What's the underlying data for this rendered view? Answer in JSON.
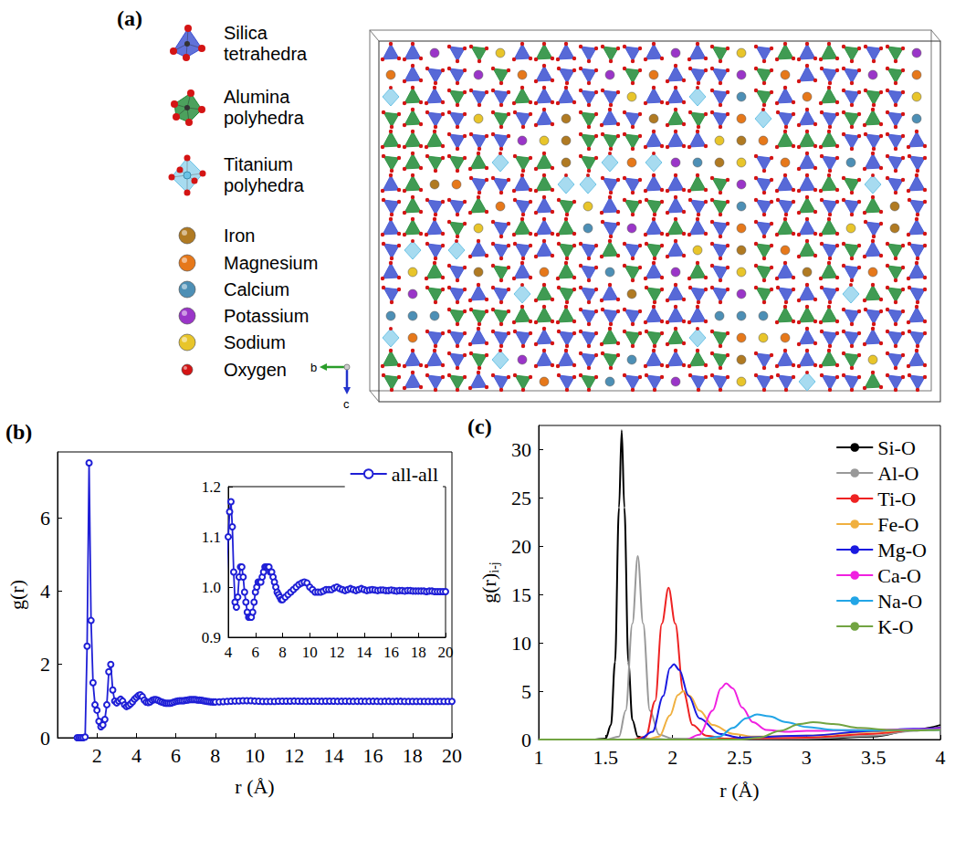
{
  "panel_a": {
    "label": "(a)",
    "legend": [
      {
        "name": "Silica tetrahedra",
        "color": "#3a4fd0",
        "marker": "tetrahedron"
      },
      {
        "name": "Alumina polyhedra",
        "color": "#1f8a35",
        "marker": "polyhedron"
      },
      {
        "name": "Titanium polyhedra",
        "color": "#6cc3e6",
        "marker": "octahedron"
      },
      {
        "name": "Iron",
        "color": "#b07a22",
        "marker": "sphere"
      },
      {
        "name": "Magnesium",
        "color": "#e6781a",
        "marker": "sphere"
      },
      {
        "name": "Calcium",
        "color": "#4d8fb5",
        "marker": "sphere"
      },
      {
        "name": "Potassium",
        "color": "#9a35c8",
        "marker": "sphere"
      },
      {
        "name": "Sodium",
        "color": "#e8c52a",
        "marker": "sphere"
      },
      {
        "name": "Oxygen",
        "color": "#d41414",
        "marker": "sphere"
      }
    ],
    "axes": [
      {
        "name": "b",
        "color": "#2a9d2a"
      },
      {
        "name": "c",
        "color": "#2233cc"
      }
    ]
  },
  "chart_data": [
    {
      "label": "(b)",
      "type": "line",
      "x_label": "r (Å)",
      "y_label": "g(r)",
      "xlim": [
        0,
        20
      ],
      "xticks": [
        2,
        4,
        6,
        8,
        10,
        12,
        14,
        16,
        18,
        20
      ],
      "ylim": [
        0,
        7.8
      ],
      "yticks": [
        0,
        2,
        4,
        6
      ],
      "legend": "upper right",
      "series": [
        {
          "name": "all-all",
          "color": "#1f1fd6",
          "marker": "circle",
          "x": [
            1.0,
            1.1,
            1.2,
            1.3,
            1.4,
            1.5,
            1.6,
            1.7,
            1.8,
            1.9,
            2.0,
            2.1,
            2.2,
            2.3,
            2.4,
            2.5,
            2.6,
            2.7,
            2.8,
            2.9,
            3.0,
            3.1,
            3.2,
            3.3,
            3.4,
            3.5,
            3.6,
            3.7,
            3.8,
            3.9,
            4.0,
            4.1,
            4.2,
            4.3,
            4.4,
            4.5,
            4.6,
            4.7,
            4.8,
            4.9,
            5.0,
            5.1,
            5.2,
            5.3,
            5.4,
            5.5,
            5.6,
            5.7,
            5.8,
            5.9,
            6.0,
            6.1,
            6.2,
            6.3,
            6.4,
            6.5,
            6.6,
            6.7,
            6.8,
            6.9,
            7.0,
            7.1,
            7.2,
            7.3,
            7.4,
            7.5,
            7.6,
            7.7,
            7.8,
            7.9,
            8.0,
            8.2,
            8.4,
            8.6,
            8.8,
            9.0,
            9.2,
            9.4,
            9.6,
            9.8,
            10.0,
            10.2,
            10.4,
            10.6,
            10.8,
            11.0,
            11.2,
            11.4,
            11.6,
            11.8,
            12.0,
            12.2,
            12.4,
            12.6,
            12.8,
            13.0,
            13.2,
            13.4,
            13.6,
            13.8,
            14.0,
            14.2,
            14.4,
            14.6,
            14.8,
            15.0,
            15.2,
            15.4,
            15.6,
            15.8,
            16.0,
            16.2,
            16.4,
            16.6,
            16.8,
            17.0,
            17.2,
            17.4,
            17.6,
            17.8,
            18.0,
            18.2,
            18.4,
            18.6,
            18.8,
            19.0,
            19.2,
            19.4,
            19.6,
            19.8,
            20.0
          ],
          "values": [
            0,
            0,
            0,
            0,
            0.02,
            2.5,
            7.5,
            3.2,
            1.5,
            0.9,
            0.75,
            0.45,
            0.3,
            0.35,
            0.5,
            0.9,
            1.8,
            2.0,
            1.3,
            1.0,
            0.95,
            1.0,
            1.05,
            1.0,
            0.9,
            0.85,
            0.88,
            0.92,
            0.98,
            1.05,
            1.1,
            1.15,
            1.17,
            1.12,
            1.03,
            0.97,
            0.96,
            0.98,
            1.02,
            1.04,
            1.04,
            1.02,
            0.99,
            0.97,
            0.95,
            0.94,
            0.94,
            0.94,
            0.95,
            0.97,
            0.99,
            1.0,
            1.01,
            1.01,
            1.01,
            1.02,
            1.03,
            1.04,
            1.04,
            1.04,
            1.04,
            1.03,
            1.03,
            1.02,
            1.01,
            1.0,
            0.99,
            0.985,
            0.98,
            0.975,
            0.975,
            0.98,
            0.985,
            0.99,
            0.995,
            1.0,
            1.005,
            1.008,
            1.01,
            1.008,
            1.0,
            0.995,
            0.99,
            0.99,
            0.99,
            0.992,
            0.995,
            0.995,
            0.995,
            0.998,
            1.0,
            0.997,
            0.995,
            0.993,
            0.995,
            0.997,
            0.995,
            0.993,
            0.995,
            0.997,
            0.995,
            0.993,
            0.994,
            0.995,
            0.994,
            0.993,
            0.994,
            0.994,
            0.993,
            0.993,
            0.994,
            0.993,
            0.992,
            0.993,
            0.993,
            0.992,
            0.993,
            0.993,
            0.992,
            0.992,
            0.992,
            0.992,
            0.992,
            0.991,
            0.992,
            0.992,
            0.991,
            0.991,
            0.991,
            0.991,
            0.991
          ]
        }
      ],
      "inset": {
        "xlim": [
          4,
          20
        ],
        "xticks": [
          4,
          6,
          8,
          10,
          12,
          14,
          16,
          18,
          20
        ],
        "ylim": [
          0.9,
          1.2
        ],
        "yticks": [
          0.9,
          {
            "value": 1,
            "label": "1.0"
          },
          1.1,
          1.2
        ]
      }
    },
    {
      "label": "(c)",
      "type": "line",
      "x_label": "r (Å)",
      "y_label": "g(r)",
      "y_label_subscript": "i-j",
      "xlim": [
        1,
        4
      ],
      "xticks": [
        1,
        1.5,
        2,
        2.5,
        3,
        3.5,
        4
      ],
      "ylim": [
        0,
        32.5
      ],
      "yticks": [
        0,
        5,
        10,
        15,
        20,
        25,
        30
      ],
      "legend": "upper right",
      "series": [
        {
          "name": "Si-O",
          "color": "#000000",
          "x": [
            1.0,
            1.4,
            1.5,
            1.54,
            1.57,
            1.6,
            1.62,
            1.64,
            1.67,
            1.7,
            1.74,
            1.8,
            2.0,
            2.5,
            3.0,
            3.5,
            3.8,
            4.0
          ],
          "values": [
            0,
            0,
            0.1,
            1.5,
            8,
            24,
            32,
            24,
            8,
            2,
            0.3,
            0.05,
            0,
            0,
            0.05,
            0.3,
            1.0,
            1.5
          ]
        },
        {
          "name": "Al-O",
          "color": "#999999",
          "x": [
            1.0,
            1.5,
            1.6,
            1.65,
            1.7,
            1.74,
            1.78,
            1.83,
            1.9,
            2.0,
            2.5,
            3.0,
            3.5,
            3.8,
            4.0
          ],
          "values": [
            0,
            0,
            0.3,
            3,
            12,
            19,
            12,
            3,
            0.5,
            0.1,
            0.05,
            0.1,
            0.4,
            0.9,
            1.3
          ]
        },
        {
          "name": "Ti-O",
          "color": "#ee2222",
          "x": [
            1.0,
            1.7,
            1.8,
            1.87,
            1.92,
            1.97,
            2.02,
            2.08,
            2.15,
            2.25,
            2.4,
            3.0,
            3.5,
            3.8,
            4.0
          ],
          "values": [
            0,
            0,
            0.3,
            4,
            12,
            15.7,
            12,
            5,
            1.5,
            0.4,
            0.1,
            0.2,
            0.6,
            1.0,
            1.2
          ]
        },
        {
          "name": "Fe-O",
          "color": "#f0b040",
          "x": [
            1.0,
            1.8,
            1.9,
            1.98,
            2.04,
            2.08,
            2.13,
            2.2,
            2.3,
            2.45,
            2.6,
            3.0,
            3.5,
            3.8,
            4.0
          ],
          "values": [
            0,
            0,
            0.3,
            2.5,
            4.6,
            5.0,
            4.5,
            3.0,
            1.5,
            0.6,
            0.3,
            0.4,
            0.8,
            1.0,
            1.1
          ]
        },
        {
          "name": "Mg-O",
          "color": "#1a1ae0",
          "x": [
            1.0,
            1.75,
            1.85,
            1.93,
            1.98,
            2.01,
            2.05,
            2.12,
            2.2,
            2.35,
            2.5,
            3.0,
            3.5,
            3.8,
            4.0
          ],
          "values": [
            0,
            0,
            0.8,
            4.5,
            7.4,
            7.8,
            7.2,
            4.5,
            2.2,
            0.6,
            0.2,
            0.4,
            0.9,
            1.1,
            1.2
          ]
        },
        {
          "name": "Ca-O",
          "color": "#f020e0",
          "x": [
            1.0,
            2.1,
            2.2,
            2.3,
            2.36,
            2.4,
            2.45,
            2.52,
            2.6,
            2.7,
            2.85,
            3.0,
            3.5,
            4.0
          ],
          "values": [
            0,
            0,
            0.5,
            3.0,
            5.3,
            5.8,
            5.3,
            3.3,
            1.8,
            1.0,
            0.8,
            0.9,
            1.0,
            1.1
          ]
        },
        {
          "name": "Na-O",
          "color": "#22a5e6",
          "x": [
            1.0,
            2.2,
            2.35,
            2.45,
            2.55,
            2.63,
            2.72,
            2.85,
            3.0,
            3.2,
            3.5,
            4.0
          ],
          "values": [
            0,
            0,
            0.3,
            1.2,
            2.2,
            2.6,
            2.4,
            1.8,
            1.3,
            1.0,
            0.95,
            1.0
          ]
        },
        {
          "name": "K-O",
          "color": "#72a442",
          "x": [
            1.0,
            2.5,
            2.65,
            2.8,
            2.95,
            3.05,
            3.2,
            3.4,
            3.6,
            3.8,
            4.0
          ],
          "values": [
            0,
            0,
            0.2,
            0.9,
            1.6,
            1.8,
            1.6,
            1.2,
            1.0,
            0.95,
            1.0
          ]
        }
      ]
    }
  ]
}
